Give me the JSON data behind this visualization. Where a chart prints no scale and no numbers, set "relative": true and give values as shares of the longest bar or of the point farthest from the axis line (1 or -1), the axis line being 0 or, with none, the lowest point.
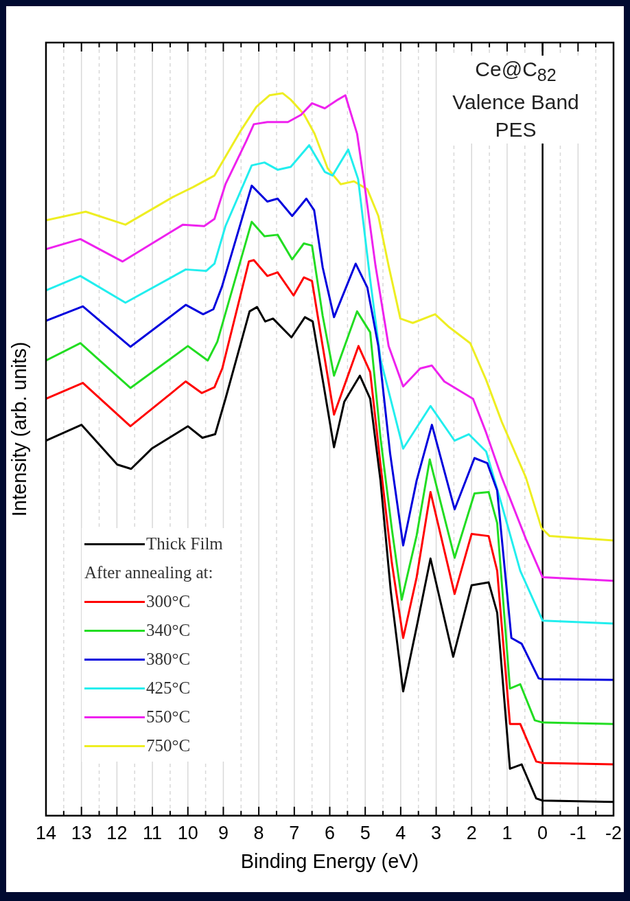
{
  "chart_data": {
    "type": "line",
    "title": "Ce@C$_{82}$ Valence Band PES",
    "xlabel": "Binding Energy (eV)",
    "ylabel": "Intensity (arb. units)",
    "relative": true,
    "legend": "bottom left",
    "legend_title": "After annealing at:",
    "grid": "x",
    "tick_labels": "x",
    "xlim": [
      14,
      -2
    ],
    "xticks": [
      14,
      {
        "value": 13.5,
        "label": null
      },
      13,
      {
        "value": 12.5,
        "label": null
      },
      12,
      {
        "value": 11.5,
        "label": null
      },
      11,
      {
        "value": 10.5,
        "label": null
      },
      10,
      {
        "value": 9.5,
        "label": null
      },
      9,
      {
        "value": 8.5,
        "label": null
      },
      8,
      {
        "value": 7.5,
        "label": null
      },
      7,
      {
        "value": 6.5,
        "label": null
      },
      6,
      {
        "value": 5.5,
        "label": null
      },
      5,
      {
        "value": 4.5,
        "label": null
      },
      4,
      {
        "value": 3.5,
        "label": null
      },
      3,
      {
        "value": 2.5,
        "label": null
      },
      2,
      {
        "value": 1.5,
        "label": null
      },
      1,
      {
        "value": 0.5,
        "label": null
      },
      0,
      {
        "value": -0.5,
        "label": null
      },
      -1,
      {
        "value": -1.5,
        "label": null
      },
      -2
    ],
    "ref_lines": [
      {
        "axis": "x",
        "value": 0,
        "color": "#000000"
      }
    ],
    "series": [
      {
        "name": "Thick Film",
        "color": "#000000",
        "x": [
          14,
          13,
          11.99,
          11.6,
          11.02,
          10,
          9.59,
          9.23,
          8.94,
          8.26,
          8.05,
          7.82,
          7.6,
          7.08,
          6.7,
          6.48,
          6.17,
          5.88,
          5.59,
          5.15,
          4.86,
          4.57,
          4.28,
          3.93,
          3.53,
          3.16,
          2.52,
          2,
          1.52,
          1.28,
          0.92,
          0.59,
          0.18,
          0,
          -2
        ],
        "values": [
          0.519,
          0.541,
          0.486,
          0.48,
          0.508,
          0.539,
          0.523,
          0.528,
          0.577,
          0.698,
          0.704,
          0.684,
          0.688,
          0.662,
          0.69,
          0.684,
          0.595,
          0.51,
          0.573,
          0.609,
          0.577,
          0.464,
          0.311,
          0.172,
          0.266,
          0.356,
          0.22,
          0.319,
          0.323,
          0.281,
          0.065,
          0.071,
          0.024,
          0.021,
          0.019
        ]
      },
      {
        "name": "300°C",
        "color": "#ff0000",
        "x": [
          14,
          12.96,
          11.62,
          10.06,
          9.61,
          9.25,
          9.03,
          8.28,
          8.14,
          7.76,
          7.47,
          7.02,
          6.73,
          6.5,
          6.2,
          5.88,
          5.19,
          4.86,
          4.57,
          4.25,
          3.93,
          3.55,
          3.16,
          2.48,
          2,
          1.52,
          1.28,
          0.92,
          0.63,
          0.18,
          0,
          -2
        ],
        "values": [
          0.577,
          0.599,
          0.539,
          0.601,
          0.585,
          0.593,
          0.619,
          0.767,
          0.769,
          0.747,
          0.752,
          0.72,
          0.745,
          0.74,
          0.65,
          0.555,
          0.65,
          0.614,
          0.486,
          0.35,
          0.246,
          0.33,
          0.448,
          0.307,
          0.39,
          0.387,
          0.339,
          0.127,
          0.127,
          0.075,
          0.073,
          0.071
        ]
      },
      {
        "name": "340°C",
        "color": "#22dd22",
        "x": [
          14,
          13.03,
          11.62,
          10,
          9.44,
          9.17,
          8.2,
          7.84,
          7.47,
          7.06,
          6.73,
          6.5,
          6.2,
          5.88,
          5.23,
          4.86,
          4.57,
          4.25,
          3.97,
          3.55,
          3.18,
          2.48,
          1.92,
          1.52,
          1.28,
          0.92,
          0.63,
          0.22,
          0,
          -2
        ],
        "values": [
          0.63,
          0.654,
          0.592,
          0.65,
          0.63,
          0.656,
          0.822,
          0.802,
          0.804,
          0.77,
          0.792,
          0.789,
          0.692,
          0.609,
          0.698,
          0.669,
          0.523,
          0.397,
          0.299,
          0.388,
          0.493,
          0.357,
          0.446,
          0.448,
          0.405,
          0.176,
          0.182,
          0.132,
          0.129,
          0.127
        ]
      },
      {
        "name": "380°C",
        "color": "#0000dd",
        "x": [
          14,
          12.96,
          11.62,
          10.06,
          9.57,
          9.28,
          9.04,
          8.2,
          7.76,
          7.47,
          7.06,
          6.66,
          6.44,
          6.2,
          5.88,
          5.27,
          4.94,
          4.63,
          4.3,
          3.93,
          3.55,
          3.12,
          2.48,
          1.92,
          1.56,
          1.28,
          0.88,
          0.59,
          0.11,
          0,
          -2
        ],
        "values": [
          0.685,
          0.705,
          0.649,
          0.707,
          0.694,
          0.701,
          0.732,
          0.872,
          0.85,
          0.854,
          0.83,
          0.854,
          0.838,
          0.759,
          0.69,
          0.764,
          0.731,
          0.65,
          0.502,
          0.374,
          0.464,
          0.541,
          0.424,
          0.495,
          0.488,
          0.45,
          0.246,
          0.238,
          0.19,
          0.189,
          0.188
        ]
      },
      {
        "name": "425°C",
        "color": "#22eeee",
        "x": [
          14,
          13.03,
          11.76,
          10.06,
          9.48,
          9.25,
          8.94,
          8.2,
          7.84,
          7.47,
          7.1,
          6.58,
          6.14,
          5.92,
          5.48,
          5.2,
          4.86,
          4.57,
          3.93,
          3.16,
          2.48,
          2.08,
          1.59,
          1.15,
          0.63,
          0,
          -2
        ],
        "values": [
          0.727,
          0.747,
          0.71,
          0.756,
          0.754,
          0.764,
          0.816,
          0.9,
          0.904,
          0.894,
          0.898,
          0.928,
          0.891,
          0.886,
          0.922,
          0.881,
          0.742,
          0.632,
          0.508,
          0.567,
          0.519,
          0.528,
          0.504,
          0.43,
          0.339,
          0.27,
          0.266
        ]
      },
      {
        "name": "550°C",
        "color": "#ee22ee",
        "x": [
          14,
          13.03,
          11.84,
          10.14,
          9.54,
          9.25,
          8.94,
          8.36,
          8.14,
          7.76,
          7.18,
          6.81,
          6.5,
          6.14,
          5.77,
          5.56,
          5.23,
          5.01,
          4.71,
          4.34,
          3.93,
          3.45,
          3.12,
          2.77,
          1.96,
          1.59,
          1.15,
          0.47,
          0,
          -2
        ],
        "values": [
          0.784,
          0.798,
          0.767,
          0.818,
          0.816,
          0.826,
          0.874,
          0.933,
          0.957,
          0.96,
          0.96,
          0.97,
          0.986,
          0.979,
          0.991,
          0.997,
          0.944,
          0.87,
          0.761,
          0.65,
          0.594,
          0.619,
          0.623,
          0.601,
          0.577,
          0.53,
          0.468,
          0.383,
          0.33,
          0.325
        ]
      },
      {
        "name": "750°C",
        "color": "#eeee22",
        "x": [
          14,
          12.88,
          11.76,
          10.43,
          9.85,
          9.25,
          8.51,
          8.07,
          7.7,
          7.33,
          7.1,
          6.73,
          6.43,
          6.06,
          5.69,
          5.32,
          4.94,
          4.63,
          4.34,
          4.01,
          3.66,
          3.03,
          2.63,
          2.04,
          1.59,
          1.15,
          0.47,
          0.03,
          -0.2,
          -2
        ],
        "values": [
          0.824,
          0.836,
          0.818,
          0.856,
          0.87,
          0.886,
          0.948,
          0.981,
          0.997,
          1,
          0.991,
          0.971,
          0.944,
          0.896,
          0.874,
          0.878,
          0.867,
          0.83,
          0.761,
          0.688,
          0.682,
          0.694,
          0.676,
          0.654,
          0.603,
          0.545,
          0.468,
          0.398,
          0.387,
          0.381
        ]
      }
    ]
  }
}
